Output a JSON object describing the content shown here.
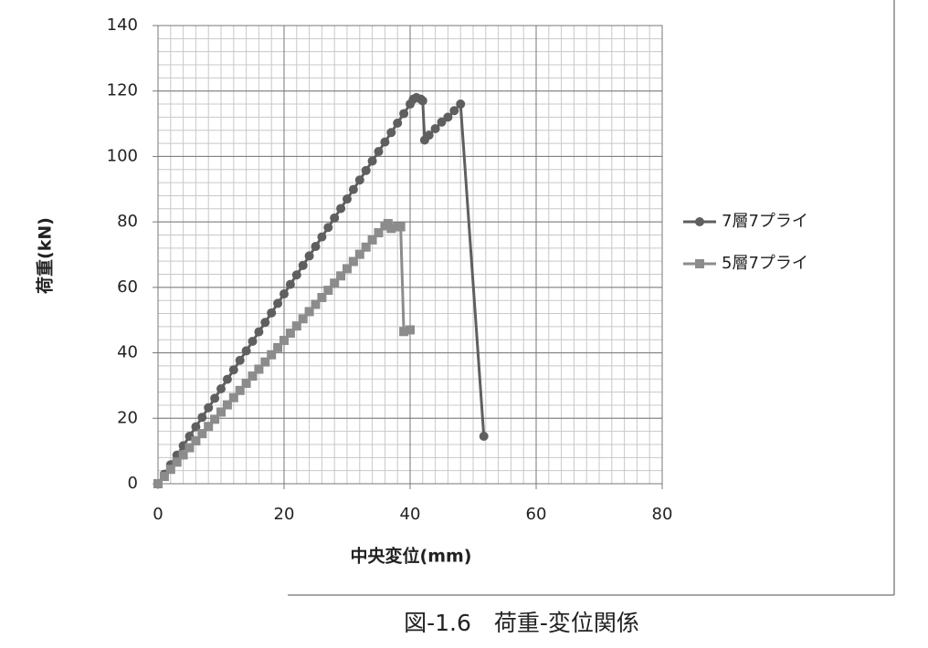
{
  "chart_data": {
    "type": "scatter-line",
    "ylabel": "荷重(kN)",
    "xlabel": "中央変位(mm)",
    "xlim": [
      0,
      80
    ],
    "xticks": [
      0,
      20,
      40,
      60,
      80
    ],
    "ylim": [
      0,
      140
    ],
    "yticks": [
      0,
      20,
      40,
      60,
      80,
      100,
      120,
      140
    ],
    "x_minor_step": 2,
    "y_minor_step": 4,
    "grid": true,
    "legend": "right",
    "series": [
      {
        "name": "7層7プライ",
        "color": "#5f5f5f",
        "marker": "circle",
        "x": [
          0,
          1,
          2,
          3,
          4,
          5,
          6,
          7,
          8,
          9,
          10,
          11,
          12,
          13,
          14,
          15,
          16,
          17,
          18,
          19,
          20,
          21,
          22,
          23,
          24,
          25,
          26,
          27,
          28,
          29,
          30,
          31,
          32,
          33,
          34,
          35,
          36,
          37,
          38,
          39,
          40,
          40.5,
          41,
          41.7,
          42,
          42.3,
          43,
          44,
          45,
          46,
          47,
          48,
          51.7
        ],
        "values": [
          0,
          2.9,
          5.8,
          8.7,
          11.6,
          14.5,
          17.4,
          20.3,
          23.2,
          26.1,
          29,
          31.9,
          34.8,
          37.7,
          40.6,
          43.5,
          46.4,
          49.3,
          52.2,
          55.1,
          58,
          60.9,
          63.8,
          66.7,
          69.6,
          72.5,
          75.4,
          78.3,
          81.2,
          84.1,
          87,
          89.9,
          92.8,
          95.7,
          98.6,
          101.5,
          104.4,
          107.3,
          110.2,
          113.1,
          116,
          117.5,
          118,
          117.5,
          117,
          105,
          106.5,
          108.5,
          110.5,
          112,
          114,
          116,
          14.5
        ]
      },
      {
        "name": "5層7プライ",
        "color": "#8c8c8c",
        "marker": "square",
        "x": [
          0,
          1,
          2,
          3,
          4,
          5,
          6,
          7,
          8,
          9,
          10,
          11,
          12,
          13,
          14,
          15,
          16,
          17,
          18,
          19,
          20,
          21,
          22,
          23,
          24,
          25,
          26,
          27,
          28,
          29,
          30,
          31,
          32,
          33,
          34,
          35,
          36,
          36.5,
          37,
          38,
          38.5,
          39,
          40
        ],
        "values": [
          0,
          2.2,
          4.4,
          6.6,
          8.8,
          11,
          13.1,
          15.3,
          17.5,
          19.7,
          21.9,
          24.1,
          26.3,
          28.5,
          30.7,
          32.9,
          35,
          37.2,
          39.4,
          41.6,
          43.8,
          46,
          48.2,
          50.4,
          52.6,
          54.8,
          56.9,
          59.1,
          61.3,
          63.5,
          65.7,
          67.9,
          70.1,
          72.3,
          74.5,
          76.7,
          78.8,
          79.5,
          78,
          78.5,
          78.5,
          46.5,
          47
        ]
      }
    ]
  },
  "caption": "図-1.6　荷重-変位関係"
}
